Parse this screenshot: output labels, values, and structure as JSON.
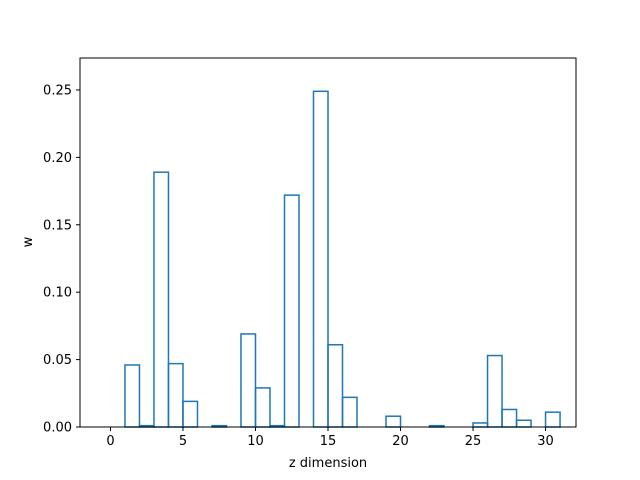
{
  "chart_data": {
    "type": "bar",
    "style": "step-histogram",
    "title": "",
    "xlabel": "z dimension",
    "ylabel": "w",
    "xlim": [
      -2.1,
      32.1
    ],
    "ylim": [
      0,
      0.2737
    ],
    "grid": false,
    "xticks": [
      0,
      5,
      10,
      15,
      20,
      25,
      30
    ],
    "xtick_labels": [
      "0",
      "5",
      "10",
      "15",
      "20",
      "25",
      "30"
    ],
    "yticks": [
      0.0,
      0.05,
      0.1,
      0.15,
      0.2,
      0.25
    ],
    "ytick_labels": [
      "0.00",
      "0.05",
      "0.10",
      "0.15",
      "0.20",
      "0.25"
    ],
    "bin_start": 0,
    "bin_width": 1,
    "values": [
      0.0,
      0.046,
      0.001,
      0.189,
      0.047,
      0.019,
      0.0,
      0.001,
      0.0,
      0.069,
      0.029,
      0.001,
      0.172,
      0.0,
      0.249,
      0.061,
      0.022,
      0.0,
      0.0,
      0.008,
      0.0,
      0.0,
      0.001,
      0.0,
      0.0,
      0.003,
      0.053,
      0.013,
      0.005,
      0.0,
      0.011
    ],
    "line_color": "#1f77b4"
  }
}
